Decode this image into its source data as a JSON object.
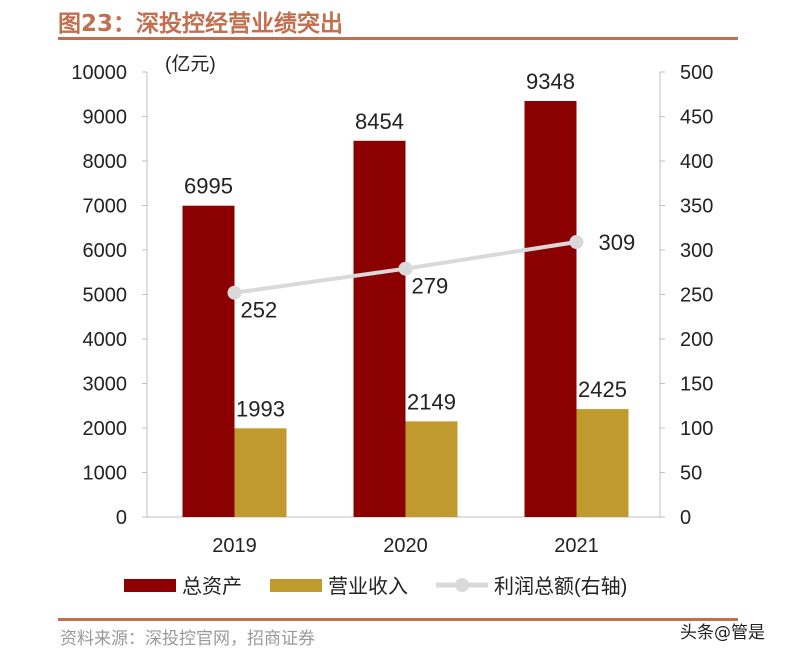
{
  "title": "图23：深投控经营业绩突出",
  "source": "资料来源：深投控官网，招商证券",
  "watermark": "头条@管是",
  "chart_data": {
    "type": "bar",
    "unit_label": "(亿元)",
    "categories": [
      "2019",
      "2020",
      "2021"
    ],
    "series": [
      {
        "name": "总资产",
        "type": "bar",
        "axis": "left",
        "color": "#8B0000",
        "values": [
          6995,
          8454,
          9348
        ]
      },
      {
        "name": "营业收入",
        "type": "bar",
        "axis": "left",
        "color": "#C09A2E",
        "values": [
          1993,
          2149,
          2425
        ]
      },
      {
        "name": "利润总额(右轴)",
        "type": "line",
        "axis": "right",
        "color": "#D9D9D9",
        "values": [
          252,
          279,
          309
        ]
      }
    ],
    "left_axis": {
      "min": 0,
      "max": 10000,
      "ticks": [
        0,
        1000,
        2000,
        3000,
        4000,
        5000,
        6000,
        7000,
        8000,
        9000,
        10000
      ]
    },
    "right_axis": {
      "min": 0,
      "max": 500,
      "ticks": [
        0,
        50,
        100,
        150,
        200,
        250,
        300,
        350,
        400,
        450,
        500
      ]
    },
    "grid": false,
    "legend_position": "bottom"
  }
}
